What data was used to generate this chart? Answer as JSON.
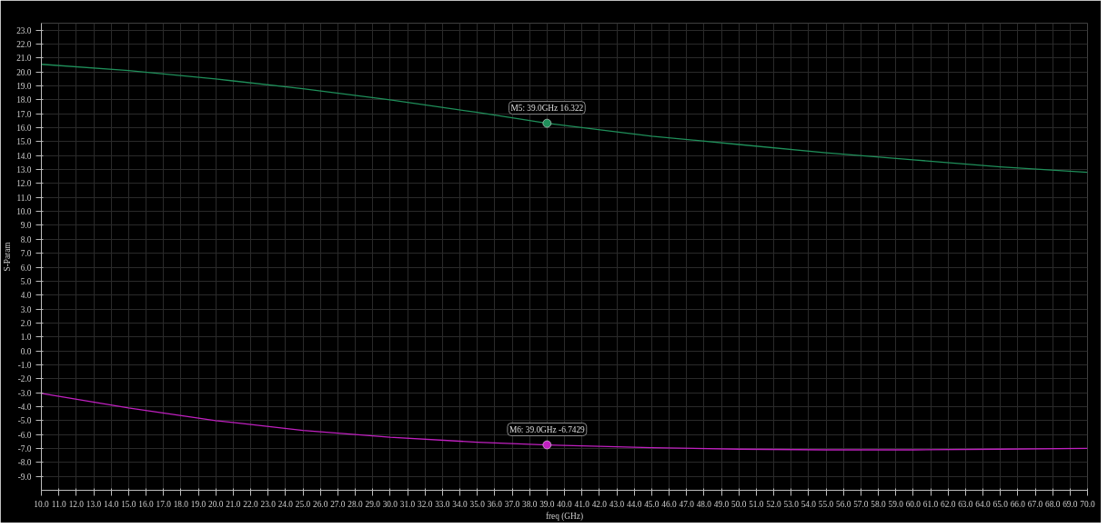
{
  "chart_data": {
    "type": "line",
    "xlabel": "freq (GHz)",
    "ylabel": "S-Param",
    "x": [
      10,
      15,
      20,
      25,
      30,
      35,
      39,
      45,
      50,
      55,
      60,
      65,
      70
    ],
    "series": [
      {
        "color": "#1f8f5a",
        "values": [
          20.55,
          20.1,
          19.5,
          18.8,
          18.0,
          17.1,
          16.322,
          15.4,
          14.8,
          14.2,
          13.7,
          13.2,
          12.8
        ]
      },
      {
        "color": "#c020c0",
        "values": [
          -3.05,
          -4.1,
          -5.0,
          -5.7,
          -6.2,
          -6.55,
          -6.7429,
          -6.95,
          -7.05,
          -7.1,
          -7.1,
          -7.05,
          -7.0
        ]
      }
    ],
    "annotations": [
      {
        "text": "M5: 39.0GHz 16.322",
        "x": 39,
        "y": 16.322
      },
      {
        "text": "M6: 39.0GHz -6.7429",
        "x": 39,
        "y": -6.7429
      }
    ],
    "xlim": [
      10,
      70
    ],
    "ylim": [
      -10,
      23.5
    ],
    "xticks": [
      {
        "value": 10,
        "label": "10.0"
      },
      {
        "value": 11,
        "label": "11.0"
      },
      {
        "value": 12,
        "label": "12.0"
      },
      {
        "value": 13,
        "label": "13.0"
      },
      {
        "value": 14,
        "label": "14.0"
      },
      {
        "value": 15,
        "label": "15.0"
      },
      {
        "value": 16,
        "label": "16.0"
      },
      {
        "value": 17,
        "label": "17.0"
      },
      {
        "value": 18,
        "label": "18.0"
      },
      {
        "value": 19,
        "label": "19.0"
      },
      {
        "value": 20,
        "label": "20.0"
      },
      {
        "value": 21,
        "label": "21.0"
      },
      {
        "value": 22,
        "label": "22.0"
      },
      {
        "value": 23,
        "label": "23.0"
      },
      {
        "value": 24,
        "label": "24.0"
      },
      {
        "value": 25,
        "label": "25.0"
      },
      {
        "value": 26,
        "label": "26.0"
      },
      {
        "value": 27,
        "label": "27.0"
      },
      {
        "value": 28,
        "label": "28.0"
      },
      {
        "value": 29,
        "label": "29.0"
      },
      {
        "value": 30,
        "label": "30.0"
      },
      {
        "value": 31,
        "label": "31.0"
      },
      {
        "value": 32,
        "label": "32.0"
      },
      {
        "value": 33,
        "label": "33.0"
      },
      {
        "value": 34,
        "label": "34.0"
      },
      {
        "value": 35,
        "label": "35.0"
      },
      {
        "value": 36,
        "label": "36.0"
      },
      {
        "value": 37,
        "label": "37.0"
      },
      {
        "value": 38,
        "label": "38.0"
      },
      {
        "value": 39,
        "label": "39.0"
      },
      {
        "value": 40,
        "label": "40.0"
      },
      {
        "value": 41,
        "label": "41.0"
      },
      {
        "value": 42,
        "label": "42.0"
      },
      {
        "value": 43,
        "label": "43.0"
      },
      {
        "value": 44,
        "label": "44.0"
      },
      {
        "value": 45,
        "label": "45.0"
      },
      {
        "value": 46,
        "label": "46.0"
      },
      {
        "value": 47,
        "label": "47.0"
      },
      {
        "value": 48,
        "label": "48.0"
      },
      {
        "value": 49,
        "label": "49.0"
      },
      {
        "value": 50,
        "label": "50.0"
      },
      {
        "value": 51,
        "label": "51.0"
      },
      {
        "value": 52,
        "label": "52.0"
      },
      {
        "value": 53,
        "label": "53.0"
      },
      {
        "value": 54,
        "label": "54.0"
      },
      {
        "value": 55,
        "label": "55.0"
      },
      {
        "value": 56,
        "label": "56.0"
      },
      {
        "value": 57,
        "label": "57.0"
      },
      {
        "value": 58,
        "label": "58.0"
      },
      {
        "value": 59,
        "label": "59.0"
      },
      {
        "value": 60,
        "label": "60.0"
      },
      {
        "value": 61,
        "label": "61.0"
      },
      {
        "value": 62,
        "label": "62.0"
      },
      {
        "value": 63,
        "label": "63.0"
      },
      {
        "value": 64,
        "label": "64.0"
      },
      {
        "value": 65,
        "label": "65.0"
      },
      {
        "value": 66,
        "label": "66.0"
      },
      {
        "value": 67,
        "label": "67.0"
      },
      {
        "value": 68,
        "label": "68.0"
      },
      {
        "value": 69,
        "label": "69.0"
      },
      {
        "value": 70,
        "label": "70.0"
      }
    ],
    "yticks": [
      {
        "value": -9,
        "label": "-9.0"
      },
      {
        "value": -8,
        "label": "-8.0"
      },
      {
        "value": -7,
        "label": "-7.0"
      },
      {
        "value": -6,
        "label": "-6.0"
      },
      {
        "value": -5,
        "label": "-5.0"
      },
      {
        "value": -4,
        "label": "-4.0"
      },
      {
        "value": -3,
        "label": "-3.0"
      },
      {
        "value": -2,
        "label": "-2.0"
      },
      {
        "value": -1,
        "label": "-1.0"
      },
      {
        "value": 0,
        "label": "0.0"
      },
      {
        "value": 1,
        "label": "1.0"
      },
      {
        "value": 2,
        "label": "2.0"
      },
      {
        "value": 3,
        "label": "3.0"
      },
      {
        "value": 4,
        "label": "4.0"
      },
      {
        "value": 5,
        "label": "5.0"
      },
      {
        "value": 6,
        "label": "6.0"
      },
      {
        "value": 7,
        "label": "7.0"
      },
      {
        "value": 8,
        "label": "8.0"
      },
      {
        "value": 9,
        "label": "9.0"
      },
      {
        "value": 10,
        "label": "10.0"
      },
      {
        "value": 11,
        "label": "11.0"
      },
      {
        "value": 12,
        "label": "12.0"
      },
      {
        "value": 13,
        "label": "13.0"
      },
      {
        "value": 14,
        "label": "14.0"
      },
      {
        "value": 15,
        "label": "15.0"
      },
      {
        "value": 16,
        "label": "16.0"
      },
      {
        "value": 17,
        "label": "17.0"
      },
      {
        "value": 18,
        "label": "18.0"
      },
      {
        "value": 19,
        "label": "19.0"
      },
      {
        "value": 20,
        "label": "20.0"
      },
      {
        "value": 21,
        "label": "21.0"
      },
      {
        "value": 22,
        "label": "22.0"
      },
      {
        "value": 23,
        "label": "23.0"
      }
    ],
    "grid": true
  }
}
